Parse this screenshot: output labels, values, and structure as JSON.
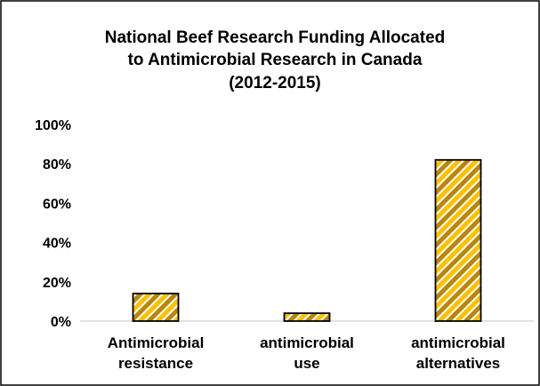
{
  "chart_data": {
    "type": "bar",
    "title_lines": [
      "National Beef Research Funding Allocated",
      "to Antimicrobial Research in Canada",
      "(2012-2015)"
    ],
    "categories": [
      [
        "Antimicrobial",
        "resistance"
      ],
      [
        "antimicrobial",
        "use"
      ],
      [
        "antimicrobial",
        "alternatives"
      ]
    ],
    "values": [
      14,
      4,
      82
    ],
    "value_unit": "%",
    "ylim": [
      0,
      100
    ],
    "yticks": [
      "0%",
      "20%",
      "40%",
      "60%",
      "80%",
      "100%"
    ],
    "ytick_values": [
      0,
      20,
      40,
      60,
      80,
      100
    ],
    "grid": false,
    "legend": "none",
    "bar_fill": {
      "pattern": "diagonal-stripes",
      "stripe_colors": [
        "#FFC000",
        "#B8860B",
        "#FFFFFF"
      ]
    },
    "bar_outline_color": "#000000",
    "frame_color": "#000000"
  }
}
